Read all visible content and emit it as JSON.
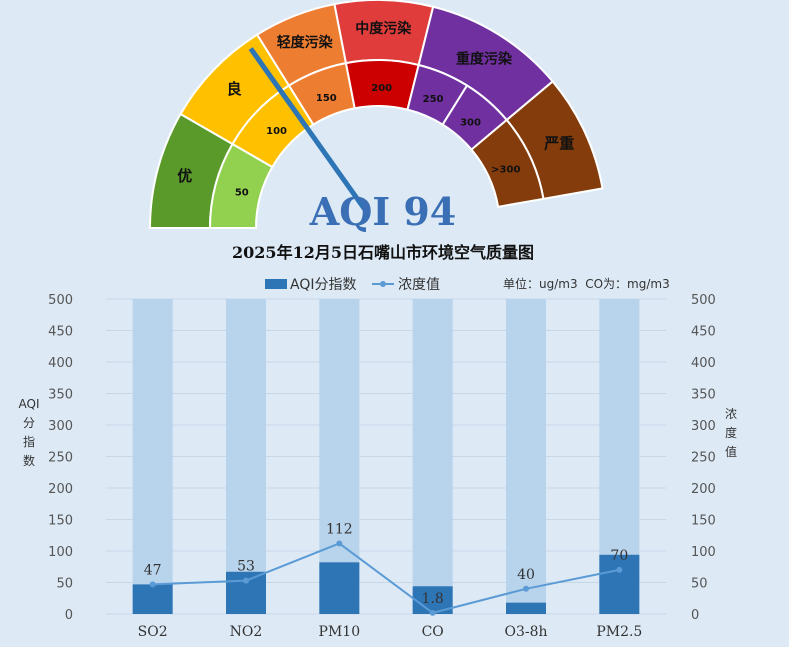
{
  "colors": {
    "background": "#ddeaf6",
    "bar_background": "#b8d3ec",
    "bar": "#2e75b6",
    "line": "#5b9bd5",
    "pointer": "#2e75b6",
    "aqi_text": "#3a6fb5"
  },
  "chart_data": [
    {
      "type": "gauge",
      "value": 94,
      "value_label": "AQI 94",
      "value_range": [
        0,
        500
      ],
      "outer_bands": [
        {
          "label": "优",
          "from": 0,
          "to": 50,
          "color": "#5a9a2a"
        },
        {
          "label": "良",
          "from": 50,
          "to": 100,
          "color": "#ffc000"
        },
        {
          "label": "轻度污染",
          "from": 100,
          "to": 150,
          "color": "#ed7d31"
        },
        {
          "label": "中度污染",
          "from": 150,
          "to": 200,
          "color": "#e03c3c"
        },
        {
          "label": "重度污染",
          "from": 200,
          "to": 300,
          "color": "#7030a0"
        },
        {
          "label": "严重",
          "from": 300,
          "to": 500,
          "color": "#843c0c"
        }
      ],
      "inner_bands": [
        {
          "label": "50",
          "color": "#92d050"
        },
        {
          "label": "100",
          "color": "#ffc000"
        },
        {
          "label": "150",
          "color": "#ed7d31"
        },
        {
          "label": "200",
          "color": "#cc0000"
        },
        {
          "label": "250",
          "color": "#7030a0"
        },
        {
          "label": "300",
          "color": "#7030a0"
        },
        {
          "label": ">300",
          "color": "#843c0c"
        }
      ]
    },
    {
      "type": "bar",
      "title": "2025年12月5日石嘴山市环境空气质量图",
      "categories": [
        "SO2",
        "NO2",
        "PM10",
        "CO",
        "O3-8h",
        "PM2.5"
      ],
      "series": [
        {
          "name": "AQI分指数",
          "type": "bar",
          "axis": "left",
          "values": [
            47,
            67,
            82,
            44,
            18,
            94
          ]
        },
        {
          "name": "浓度值",
          "type": "line",
          "axis": "right",
          "values": [
            47,
            53,
            112,
            1.8,
            40,
            70
          ],
          "labels": [
            "47",
            "53",
            "112",
            "1.8",
            "40",
            "70"
          ]
        }
      ],
      "background_bar_value": 500,
      "ylim_left": [
        0,
        500
      ],
      "ylim_right": [
        0,
        500
      ],
      "yticks": [
        0,
        50,
        100,
        150,
        200,
        250,
        300,
        350,
        400,
        450,
        500
      ],
      "ylabel_left": "AQI分指数",
      "ylabel_right": "浓度值",
      "unit_note": "单位：ug/m3  CO为：mg/m3",
      "grid": true,
      "legend_position": "top-center"
    }
  ]
}
